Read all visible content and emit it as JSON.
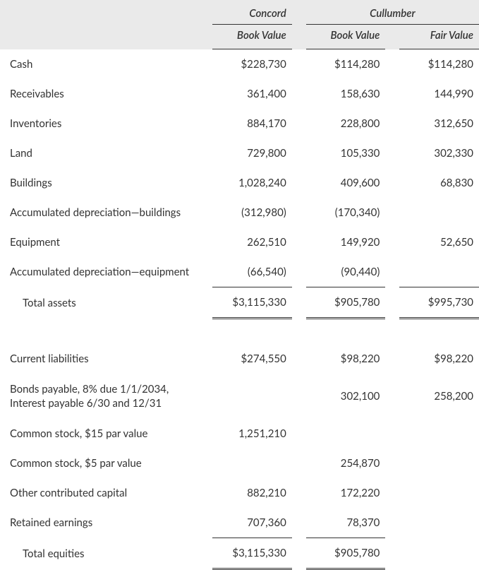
{
  "header": {
    "company1": "Concord",
    "company2": "Cullumber",
    "col1": "Book Value",
    "col2": "Book Value",
    "col3": "Fair Value"
  },
  "rows": {
    "cash": {
      "label": "Cash",
      "c1": "$228,730",
      "c2": "$114,280",
      "c3": "$114,280"
    },
    "recv": {
      "label": "Receivables",
      "c1": "361,400",
      "c2": "158,630",
      "c3": "144,990"
    },
    "inv": {
      "label": "Inventories",
      "c1": "884,170",
      "c2": "228,800",
      "c3": "312,650"
    },
    "land": {
      "label": "Land",
      "c1": "729,800",
      "c2": "105,330",
      "c3": "302,330"
    },
    "bldg": {
      "label": "Buildings",
      "c1": "1,028,240",
      "c2": "409,600",
      "c3": "68,830"
    },
    "adbl": {
      "label": "Accumulated depreciation—buildings",
      "c1": "(312,980)",
      "c2": "(170,340)",
      "c3": ""
    },
    "equip": {
      "label": "Equipment",
      "c1": "262,510",
      "c2": "149,920",
      "c3": "52,650"
    },
    "adeq": {
      "label": "Accumulated depreciation—equipment",
      "c1": "(66,540)",
      "c2": "(90,440)",
      "c3": ""
    },
    "tassets": {
      "label": "Total assets",
      "c1": "$3,115,330",
      "c2": "$905,780",
      "c3": "$995,730"
    },
    "curliab": {
      "label": "Current liabilities",
      "c1": "$274,550",
      "c2": "$98,220",
      "c3": "$98,220"
    },
    "bonds": {
      "label": "Bonds payable, 8% due 1/1/2034, Interest payable 6/30 and 12/31",
      "c1": "",
      "c2": "302,100",
      "c3": "258,200"
    },
    "cs15": {
      "label": "Common stock, $15 par value",
      "c1": "1,251,210",
      "c2": "",
      "c3": ""
    },
    "cs5": {
      "label": "Common stock, $5 par value",
      "c1": "",
      "c2": "254,870",
      "c3": ""
    },
    "ocap": {
      "label": "Other contributed capital",
      "c1": "882,210",
      "c2": "172,220",
      "c3": ""
    },
    "re": {
      "label": "Retained earnings",
      "c1": "707,360",
      "c2": "78,370",
      "c3": ""
    },
    "tequities": {
      "label": "Total equities",
      "c1": "$3,115,330",
      "c2": "$905,780",
      "c3": ""
    }
  }
}
